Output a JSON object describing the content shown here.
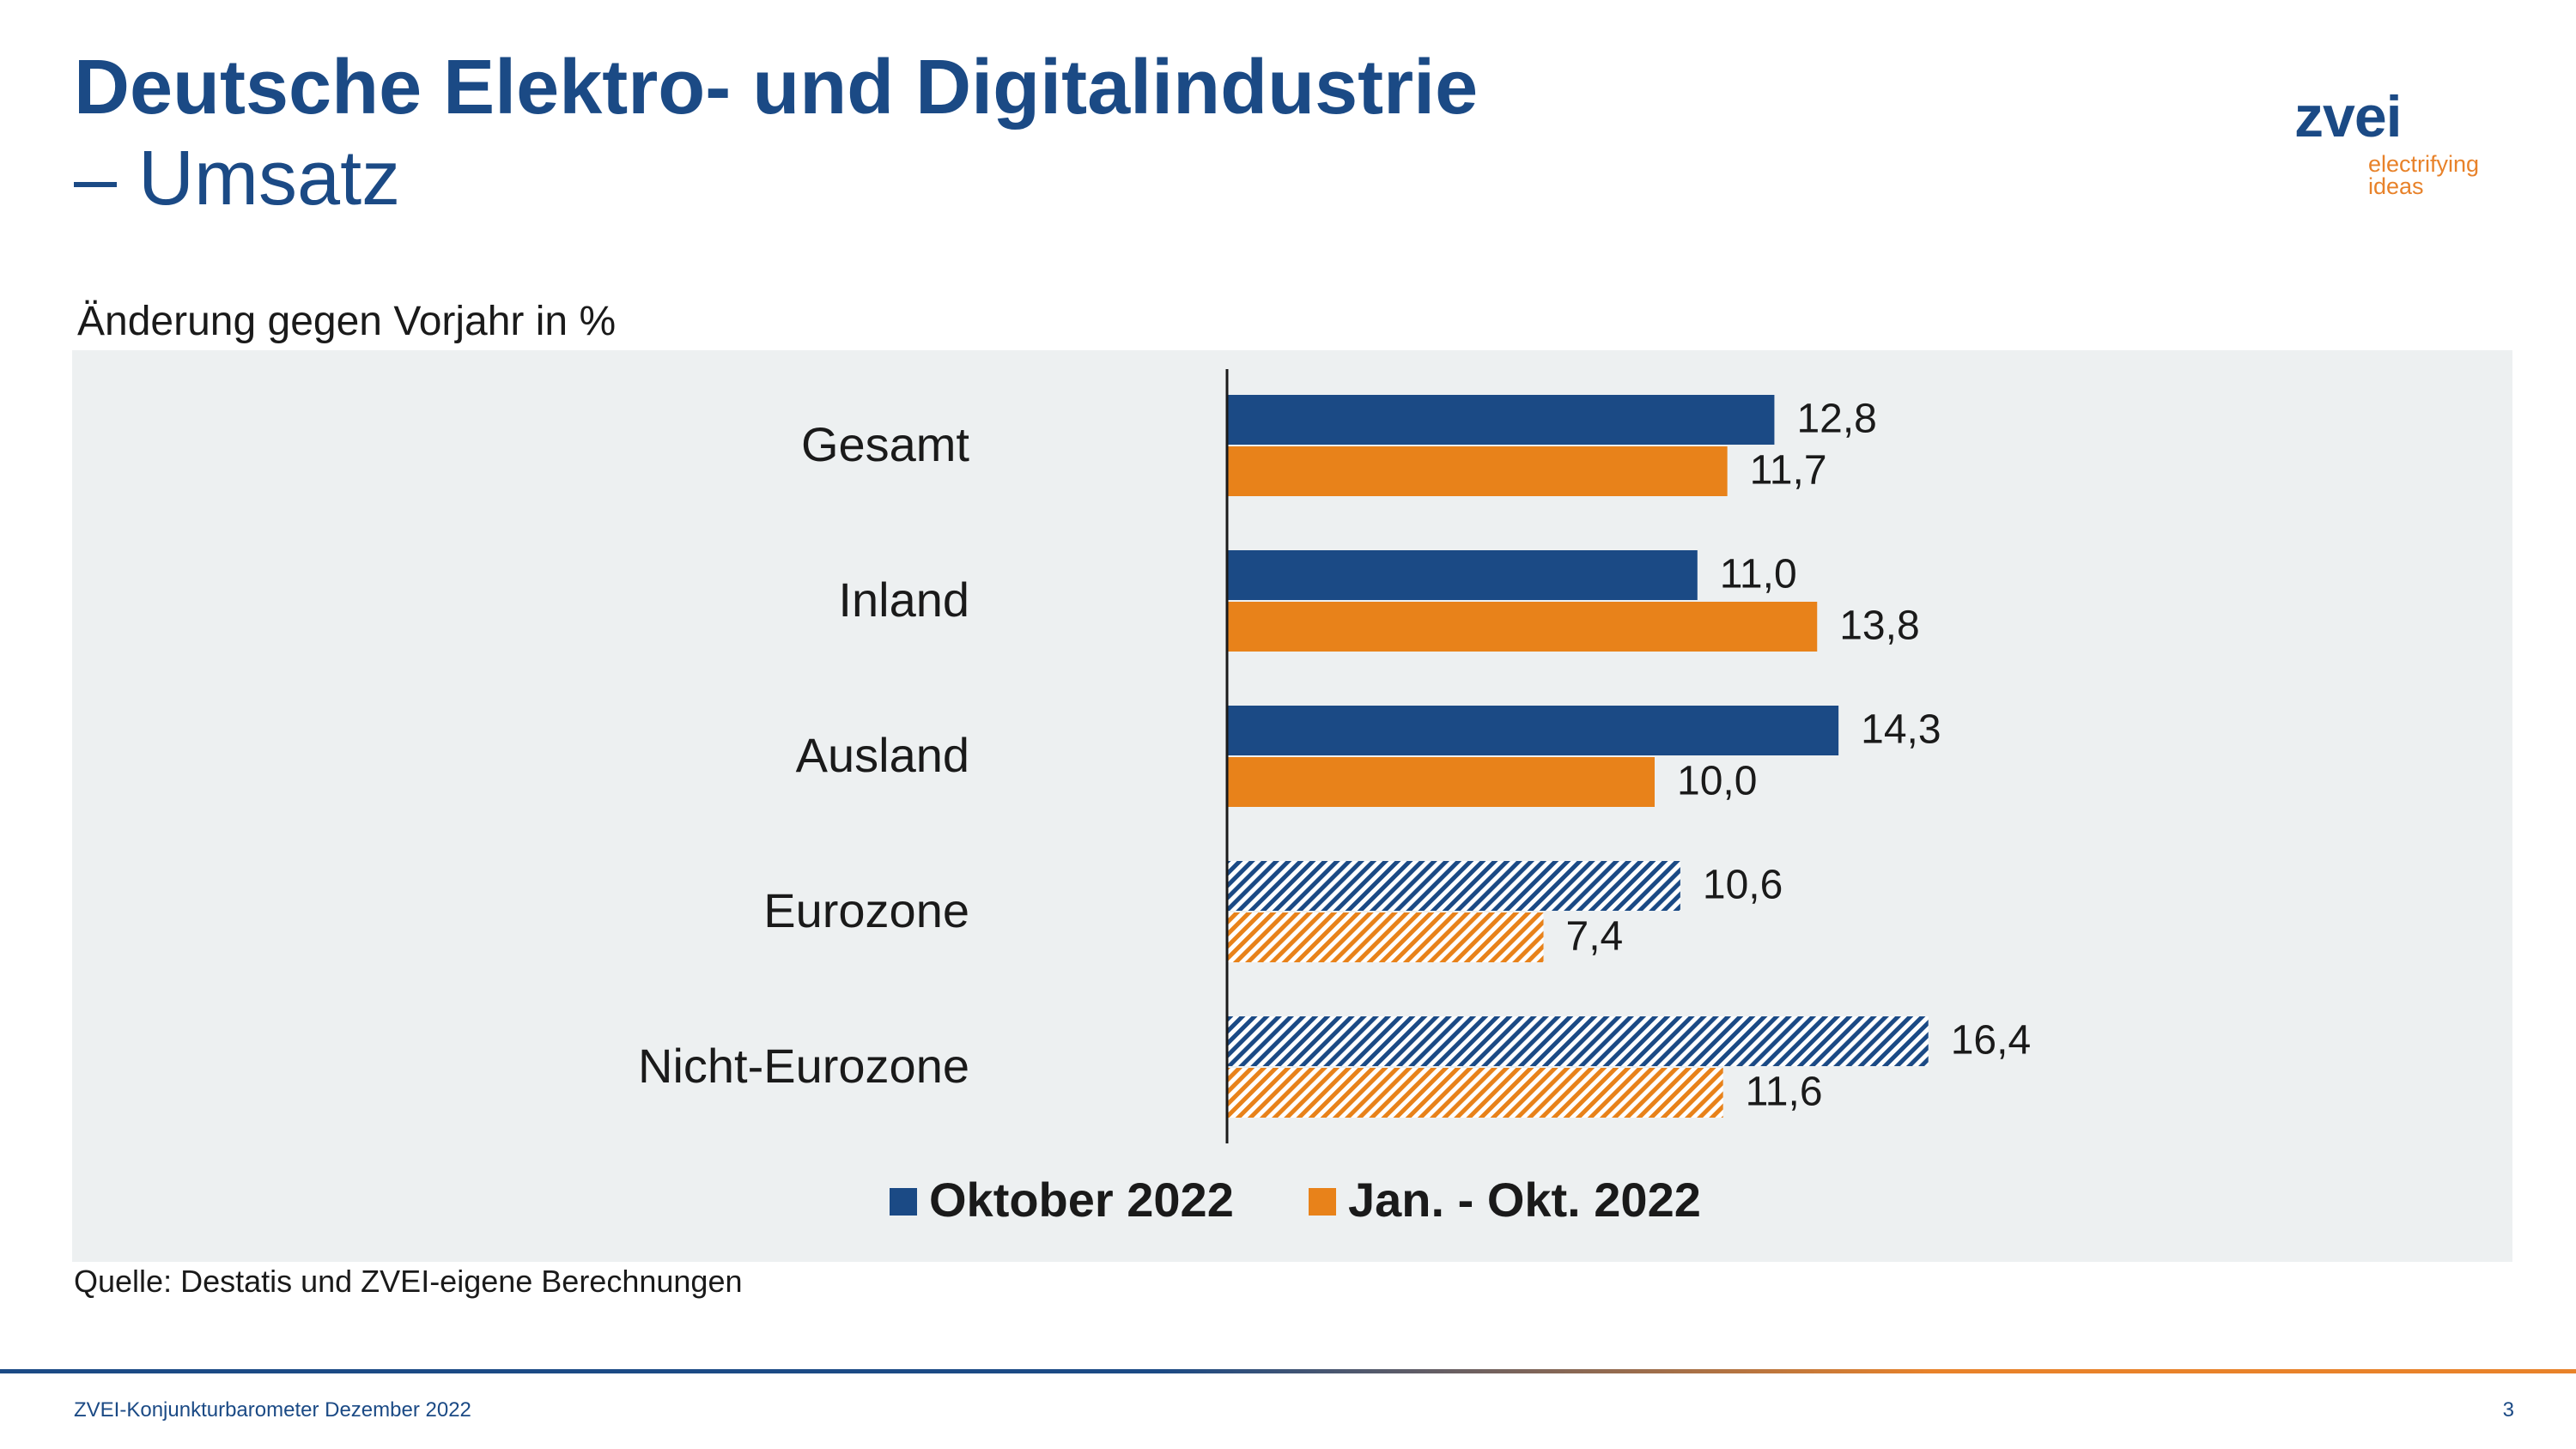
{
  "header": {
    "title_line1": "Deutsche Elektro- und Digitalindustrie",
    "title_line2": "– Umsatz"
  },
  "logo": {
    "word": "zvei",
    "tagline_line1": "electrifying",
    "tagline_line2": "ideas"
  },
  "subtitle": "Änderung gegen Vorjahr in %",
  "source": "Quelle: Destatis und ZVEI-eigene Berechnungen",
  "footer": {
    "text": "ZVEI-Konjunkturbarometer Dezember 2022",
    "page": "3"
  },
  "colors": {
    "blue": "#1b4a85",
    "orange": "#e8821a",
    "panel": "#edf0f1"
  },
  "chart_data": {
    "type": "bar",
    "orientation": "horizontal",
    "categories": [
      "Gesamt",
      "Inland",
      "Ausland",
      "Eurozone",
      "Nicht-Eurozone"
    ],
    "series": [
      {
        "name": "Oktober 2022",
        "color": "#1b4a85",
        "values": [
          12.8,
          11.0,
          14.3,
          10.6,
          16.4
        ],
        "value_labels": [
          "12,8",
          "11,0",
          "14,3",
          "10,6",
          "16,4"
        ]
      },
      {
        "name": "Jan. - Okt. 2022",
        "color": "#e8821a",
        "values": [
          11.7,
          13.8,
          10.0,
          7.4,
          11.6
        ],
        "value_labels": [
          "11,7",
          "13,8",
          "10,0",
          "7,4",
          "11,6"
        ]
      }
    ],
    "hatched_categories": [
      "Eurozone",
      "Nicht-Eurozone"
    ],
    "xlim": [
      0,
      20
    ],
    "grid": false,
    "legend_position": "bottom"
  }
}
